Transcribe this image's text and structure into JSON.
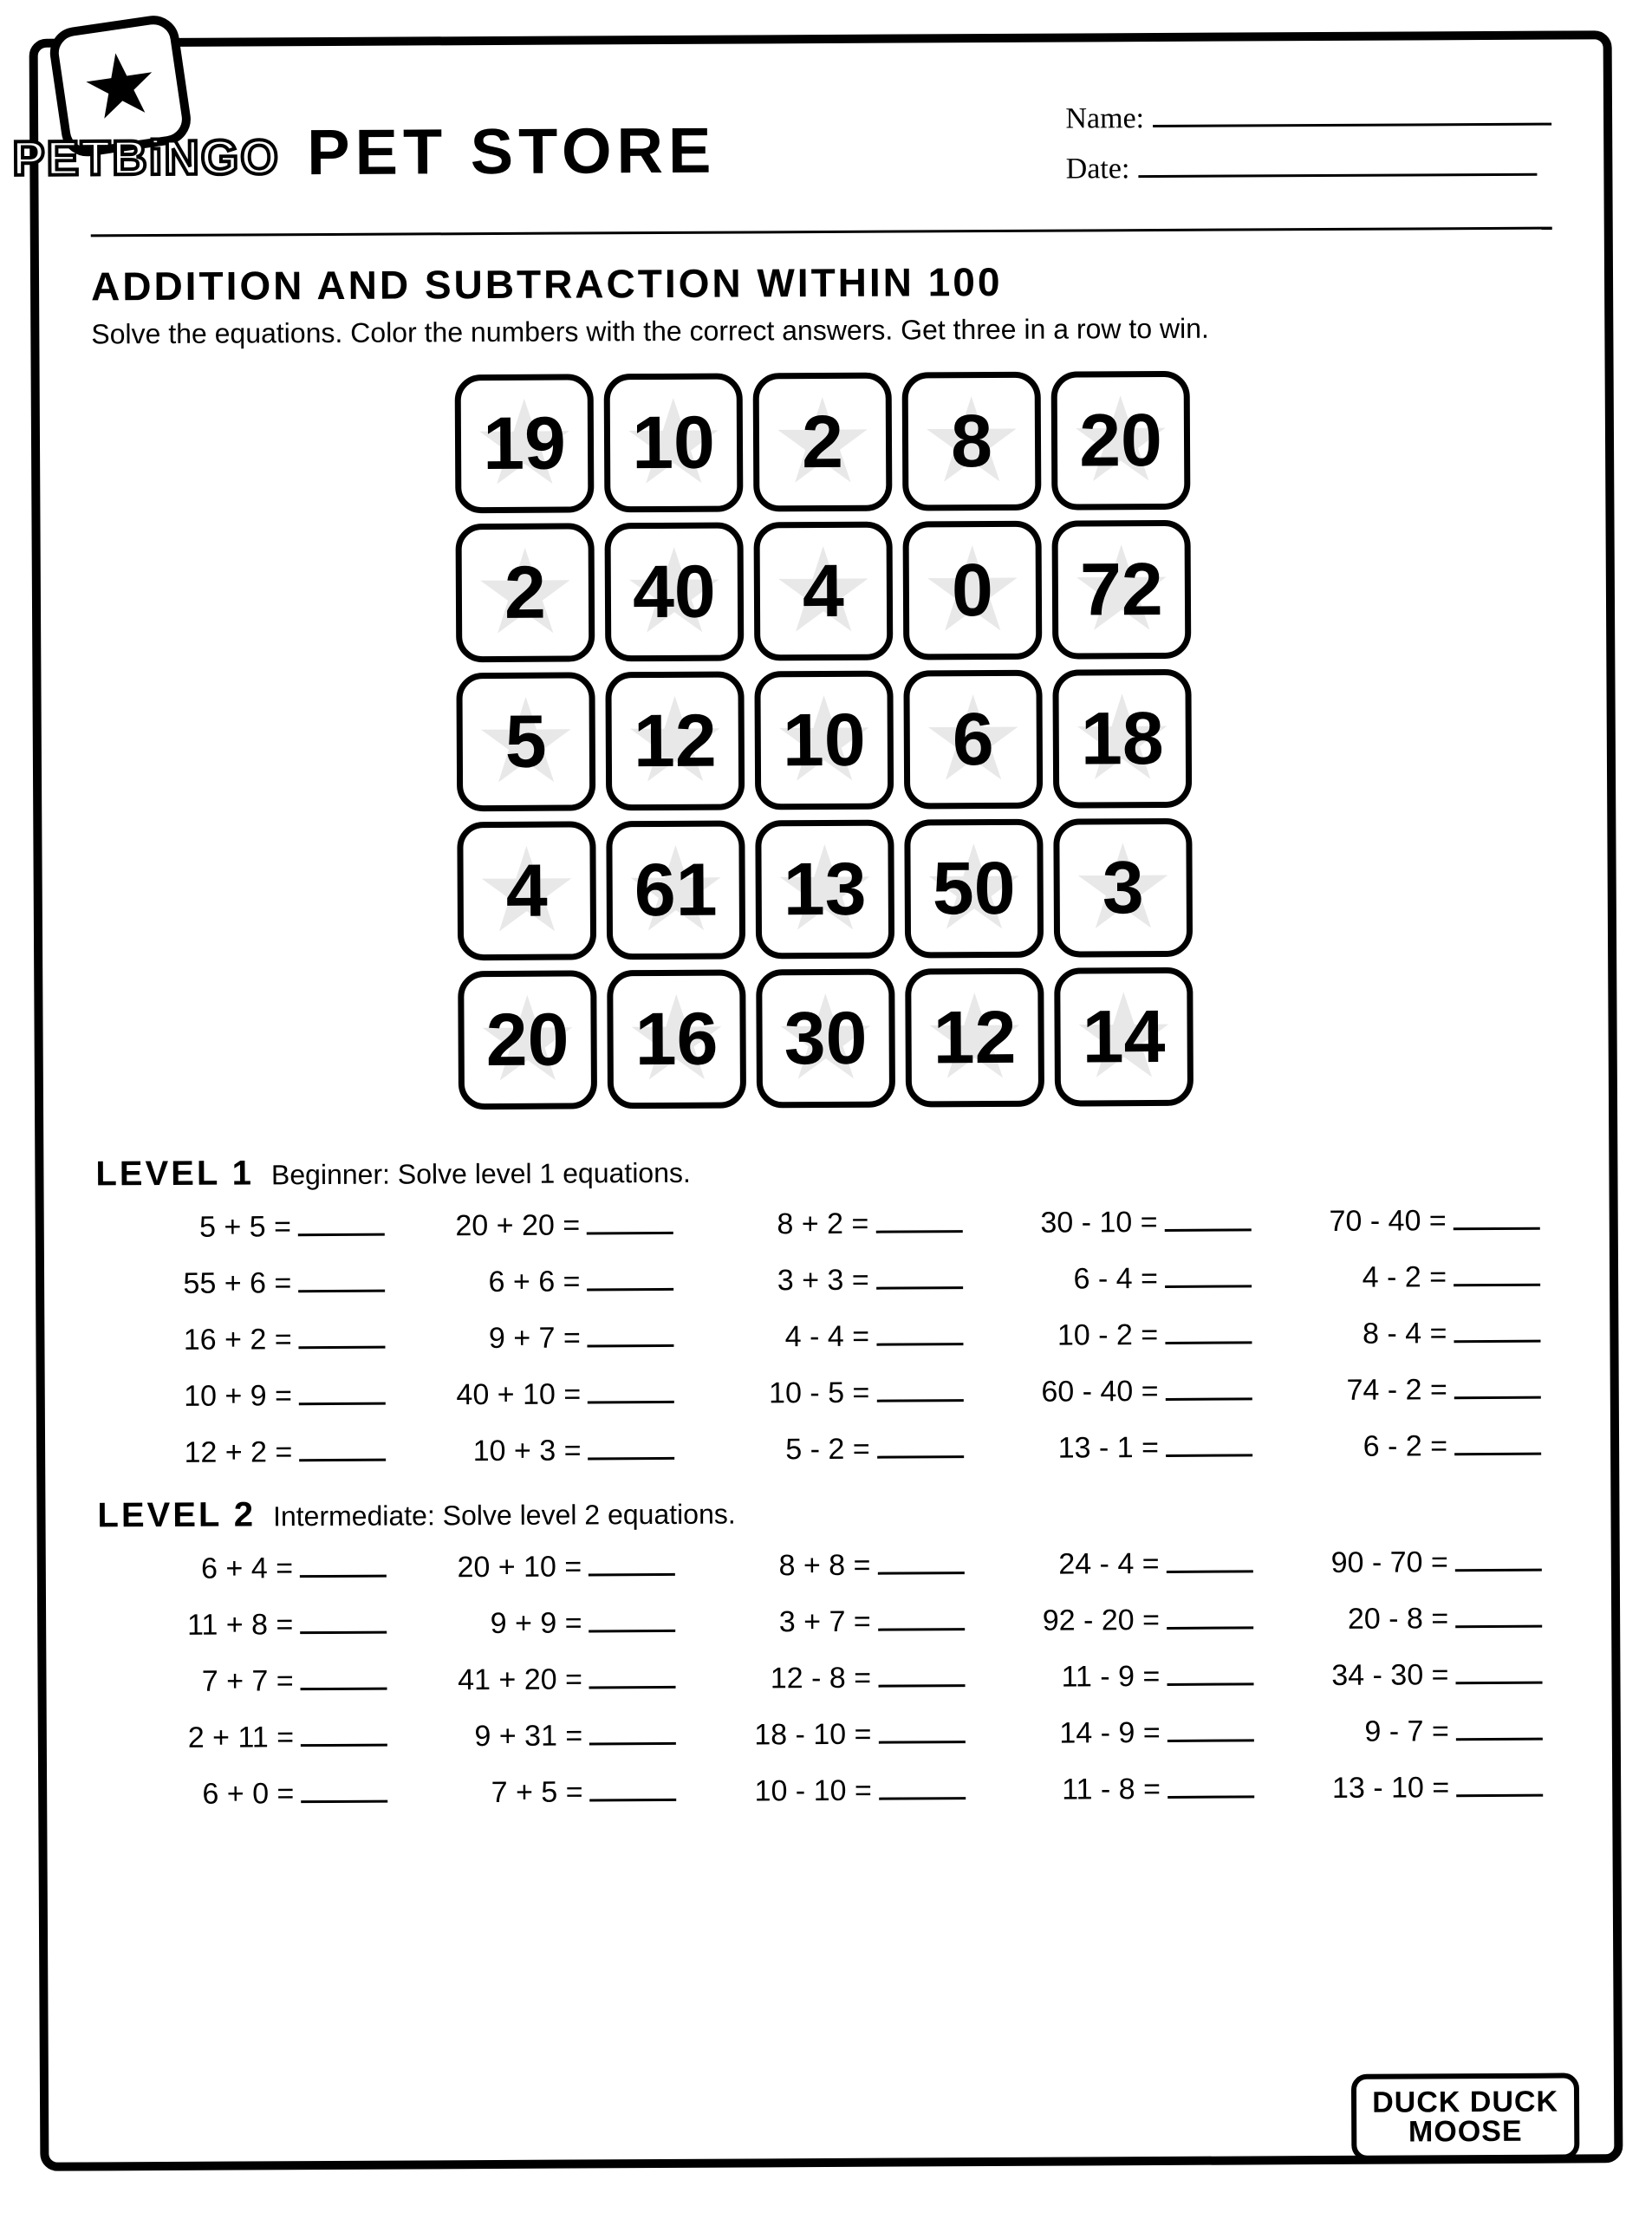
{
  "brand": {
    "logo_line1": "PET",
    "logo_line2": "BiNGO"
  },
  "title": "PET STORE",
  "form": {
    "name_label": "Name:",
    "date_label": "Date:"
  },
  "section": {
    "heading": "ADDITION AND SUBTRACTION WITHIN 100",
    "instructions": "Solve the equations. Color the numbers with the correct answers. Get three in a row to win."
  },
  "bingo": {
    "grid": [
      [
        "19",
        "10",
        "2",
        "8",
        "20"
      ],
      [
        "2",
        "40",
        "4",
        "0",
        "72"
      ],
      [
        "5",
        "12",
        "10",
        "6",
        "18"
      ],
      [
        "4",
        "61",
        "13",
        "50",
        "3"
      ],
      [
        "20",
        "16",
        "30",
        "12",
        "14"
      ]
    ]
  },
  "levels": [
    {
      "title": "LEVEL 1",
      "desc": "Beginner: Solve level 1 equations.",
      "equations": [
        [
          "5 + 5 =",
          "20 + 20 =",
          "8 + 2 =",
          "30 - 10 =",
          "70 - 40 ="
        ],
        [
          "55 + 6 =",
          "6 + 6 =",
          "3 + 3 =",
          "6 - 4 =",
          "4 - 2 ="
        ],
        [
          "16 + 2 =",
          "9 + 7 =",
          "4 - 4 =",
          "10 - 2 =",
          "8 - 4 ="
        ],
        [
          "10 + 9 =",
          "40 + 10 =",
          "10 - 5 =",
          "60 - 40 =",
          "74 - 2 ="
        ],
        [
          "12 + 2 =",
          "10 + 3 =",
          "5 - 2 =",
          "13 - 1 =",
          "6 - 2 ="
        ]
      ]
    },
    {
      "title": "LEVEL 2",
      "desc": "Intermediate: Solve level 2 equations.",
      "equations": [
        [
          "6 + 4 =",
          "20 + 10 =",
          "8 + 8 =",
          "24 - 4 =",
          "90 - 70 ="
        ],
        [
          "11 + 8 =",
          "9 + 9 =",
          "3 + 7 =",
          "92 - 20 =",
          "20 - 8 ="
        ],
        [
          "7 + 7 =",
          "41 + 20 =",
          "12 - 8 =",
          "11 - 9 =",
          "34 - 30 ="
        ],
        [
          "2 + 11 =",
          "9 + 31 =",
          "18 - 10 =",
          "14 - 9 =",
          "9 - 7 ="
        ],
        [
          "6 + 0 =",
          "7 + 5 =",
          "10 - 10 =",
          "11 - 8 =",
          "13 - 10 ="
        ]
      ]
    }
  ],
  "footer": {
    "line1": "DUCK DUCK",
    "line2": "MOOSE"
  },
  "colors": {
    "text": "#000000",
    "background": "#ffffff",
    "star_watermark": "#e8e8e8"
  }
}
